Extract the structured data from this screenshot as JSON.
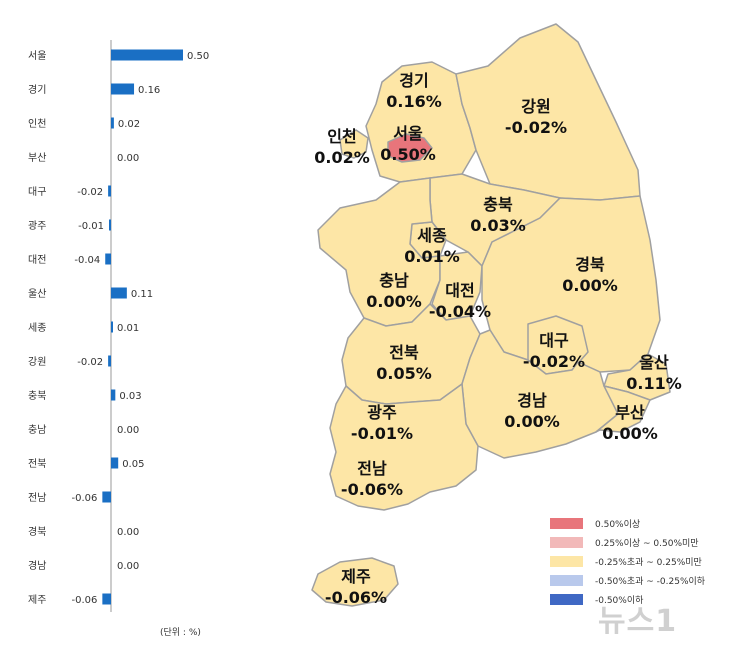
{
  "chart_data": {
    "type": "bar",
    "orientation": "horizontal",
    "categories": [
      "서울",
      "경기",
      "인천",
      "부산",
      "대구",
      "광주",
      "대전",
      "울산",
      "세종",
      "강원",
      "충북",
      "충남",
      "전북",
      "전남",
      "경북",
      "경남",
      "제주"
    ],
    "values": [
      0.5,
      0.16,
      0.02,
      0.0,
      -0.02,
      -0.01,
      -0.04,
      0.11,
      0.01,
      -0.02,
      0.03,
      0.0,
      0.05,
      -0.06,
      0.0,
      0.0,
      -0.06
    ],
    "value_labels": [
      "0.50",
      "0.16",
      "0.02",
      "0.00",
      "-0.02",
      "-0.01",
      "-0.04",
      "0.11",
      "0.01",
      "-0.02",
      "0.03",
      "0.00",
      "0.05",
      "-0.06",
      "0.00",
      "0.00",
      "-0.06"
    ],
    "unit_note": "(단위 : %)",
    "bar_color": "#1a6fc4"
  },
  "map": {
    "regions": [
      {
        "name": "경기",
        "value": "0.16%",
        "fill": "#fde6a6"
      },
      {
        "name": "서울",
        "value": "0.50%",
        "fill": "#e8757b"
      },
      {
        "name": "인천",
        "value": "0.02%",
        "fill": "#fde6a6"
      },
      {
        "name": "강원",
        "value": "-0.02%",
        "fill": "#fde6a6"
      },
      {
        "name": "충북",
        "value": "0.03%",
        "fill": "#fde6a6"
      },
      {
        "name": "세종",
        "value": "0.01%",
        "fill": "#fde6a6"
      },
      {
        "name": "충남",
        "value": "0.00%",
        "fill": "#fde6a6"
      },
      {
        "name": "대전",
        "value": "-0.04%",
        "fill": "#fde6a6"
      },
      {
        "name": "경북",
        "value": "0.00%",
        "fill": "#fde6a6"
      },
      {
        "name": "대구",
        "value": "-0.02%",
        "fill": "#fde6a6"
      },
      {
        "name": "울산",
        "value": "0.11%",
        "fill": "#fde6a6"
      },
      {
        "name": "전북",
        "value": "0.05%",
        "fill": "#fde6a6"
      },
      {
        "name": "경남",
        "value": "0.00%",
        "fill": "#fde6a6"
      },
      {
        "name": "부산",
        "value": "0.00%",
        "fill": "#fde6a6"
      },
      {
        "name": "광주",
        "value": "-0.01%",
        "fill": "#fde6a6"
      },
      {
        "name": "전남",
        "value": "-0.06%",
        "fill": "#fde6a6"
      },
      {
        "name": "제주",
        "value": "-0.06%",
        "fill": "#fde6a6"
      }
    ],
    "border_color": "#a0a0a0"
  },
  "legend": {
    "items": [
      {
        "label": "0.50%이상",
        "color": "#e8757b"
      },
      {
        "label": "0.25%이상 ~ 0.50%미만",
        "color": "#f2b9b9"
      },
      {
        "label": "-0.25%초과 ~ 0.25%미만",
        "color": "#fde6a6"
      },
      {
        "label": "-0.50%초과 ~ -0.25%이하",
        "color": "#b9c9ec"
      },
      {
        "label": "-0.50%이하",
        "color": "#3f68c4"
      }
    ]
  },
  "watermark": "뉴스1"
}
